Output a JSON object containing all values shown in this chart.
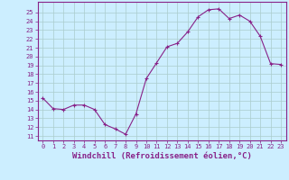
{
  "x": [
    0,
    1,
    2,
    3,
    4,
    5,
    6,
    7,
    8,
    9,
    10,
    11,
    12,
    13,
    14,
    15,
    16,
    17,
    18,
    19,
    20,
    21,
    22,
    23
  ],
  "y": [
    15.3,
    14.1,
    14.0,
    14.5,
    14.5,
    14.0,
    12.3,
    11.8,
    11.2,
    13.5,
    17.5,
    19.3,
    21.1,
    21.5,
    22.8,
    24.5,
    25.3,
    25.4,
    24.3,
    24.7,
    24.0,
    22.3,
    19.2,
    19.1
  ],
  "line_color": "#882288",
  "marker": "+",
  "marker_size": 3.5,
  "marker_linewidth": 0.8,
  "bg_color": "#cceeff",
  "grid_color": "#aacccc",
  "xlabel": "Windchill (Refroidissement éolien,°C)",
  "xlim": [
    -0.5,
    23.5
  ],
  "ylim": [
    10.5,
    26.2
  ],
  "yticks": [
    11,
    12,
    13,
    14,
    15,
    16,
    17,
    18,
    19,
    20,
    21,
    22,
    23,
    24,
    25
  ],
  "xticks": [
    0,
    1,
    2,
    3,
    4,
    5,
    6,
    7,
    8,
    9,
    10,
    11,
    12,
    13,
    14,
    15,
    16,
    17,
    18,
    19,
    20,
    21,
    22,
    23
  ],
  "tick_color": "#882288",
  "tick_fontsize": 5.0,
  "xlabel_fontsize": 6.5,
  "xlabel_fontweight": "bold",
  "linewidth": 0.8
}
